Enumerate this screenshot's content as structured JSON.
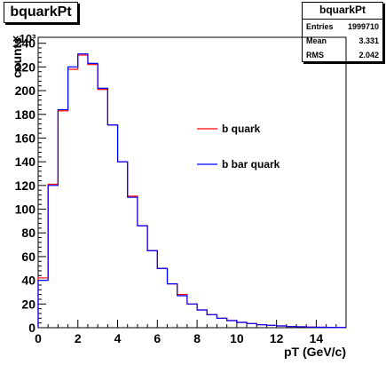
{
  "title": "bquarkPt",
  "stats": {
    "name": "bquarkPt",
    "rows": [
      {
        "label": "Entries",
        "value": "1999710"
      },
      {
        "label": "Mean",
        "value": "3.331"
      },
      {
        "label": "RMS",
        "value": "2.042"
      }
    ]
  },
  "chart_data": {
    "type": "line",
    "style": "step histogram",
    "xlabel": "pT (GeV/c)",
    "ylabel": "counts",
    "y_multiplier": "×10³",
    "xlim": [
      0,
      15.5
    ],
    "ylim": [
      0,
      245
    ],
    "x_ticks": [
      "0",
      "2",
      "4",
      "6",
      "8",
      "10",
      "12",
      "14"
    ],
    "y_ticks": [
      "0",
      "20",
      "40",
      "60",
      "80",
      "100",
      "120",
      "140",
      "160",
      "180",
      "200",
      "220",
      "240"
    ],
    "bin_width": 0.5,
    "bin_edges_start": 0,
    "series": [
      {
        "name": "b quark",
        "color": "#ff0000",
        "values": [
          42,
          121,
          183,
          218,
          230,
          222,
          201,
          171,
          140,
          111,
          86,
          65,
          50,
          37,
          28,
          20,
          15,
          11,
          8,
          6,
          4.5,
          3.5,
          2.5,
          2,
          1.5,
          1,
          0.8,
          0.5,
          0.4,
          0.3,
          0.2
        ]
      },
      {
        "name": "b bar quark",
        "color": "#0000ff",
        "values": [
          40,
          120,
          184,
          220,
          231,
          223,
          202,
          171,
          140,
          110,
          86,
          65,
          50,
          37,
          27,
          20,
          15,
          11,
          8,
          6,
          4.5,
          3.5,
          2.5,
          2,
          1.5,
          1,
          0.8,
          0.5,
          0.4,
          0.3,
          0.2
        ]
      }
    ],
    "legend_position": "center-right"
  }
}
